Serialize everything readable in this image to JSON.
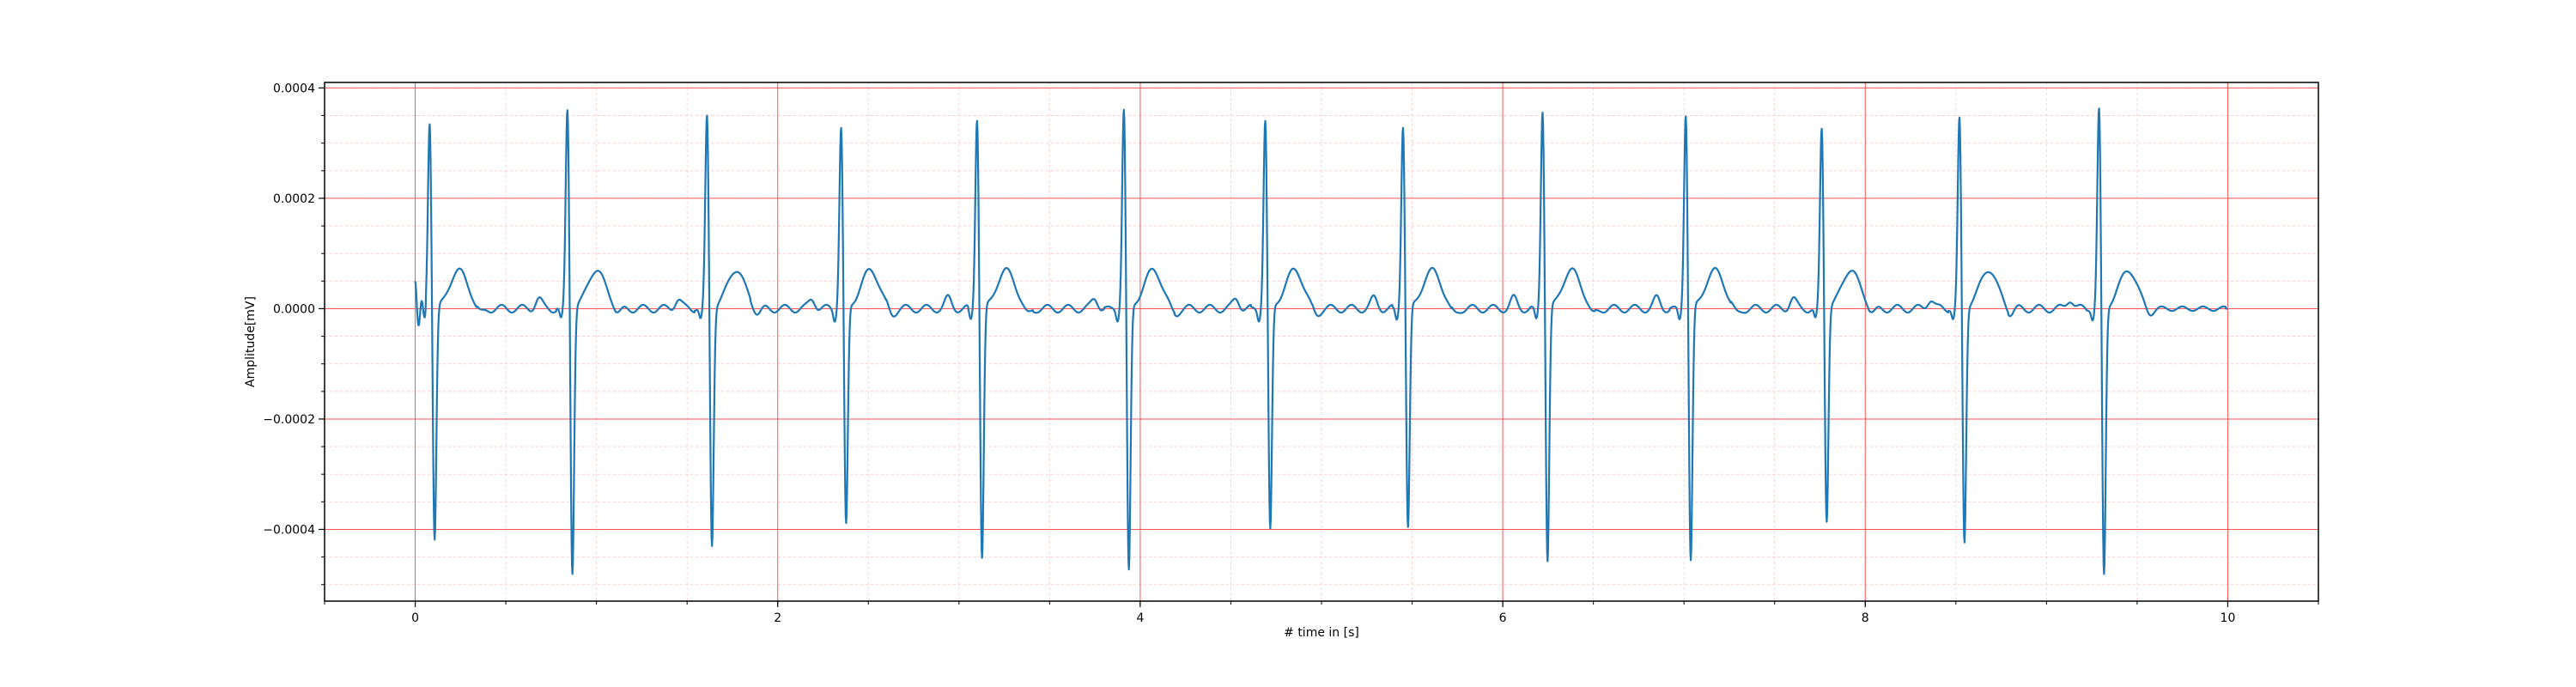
{
  "chart_data": {
    "type": "line",
    "title": "",
    "xlabel": "# time in [s]",
    "ylabel": "Amplitude[mV]",
    "xlim": [
      -0.5,
      10.5
    ],
    "ylim": [
      -0.00053,
      0.00041
    ],
    "xticks": [
      0,
      2,
      4,
      6,
      8,
      10
    ],
    "xtick_labels": [
      "0",
      "2",
      "4",
      "6",
      "8",
      "10"
    ],
    "yticks": [
      0.0004,
      0.0002,
      0.0,
      -0.0002,
      -0.0004
    ],
    "ytick_labels": [
      "0.0004",
      "0.0002",
      "0.0000",
      "−0.0002",
      "−0.0004"
    ],
    "x_minor_step": 0.5,
    "y_minor_step": 5e-05,
    "grid": true,
    "grid_major_color": "#ff5555",
    "grid_minor_color": "#ffc8c8",
    "line_color": "#1f77b4",
    "legend": null,
    "series": [
      {
        "name": "",
        "beat_times": [
          0.08,
          0.84,
          1.61,
          2.35,
          3.1,
          3.91,
          4.69,
          5.45,
          6.22,
          7.01,
          7.76,
          8.52,
          9.29
        ],
        "r_peaks": [
          0.000345,
          0.000368,
          0.000355,
          0.000333,
          0.000352,
          0.000368,
          0.000347,
          0.000338,
          0.000367,
          0.00036,
          0.000333,
          0.00035,
          0.000367
        ],
        "s_troughs": [
          -0.000425,
          -0.000485,
          -0.000435,
          -0.0004,
          -0.00046,
          -0.000485,
          -0.00041,
          -0.000405,
          -0.000465,
          -0.000465,
          -0.00039,
          -0.00043,
          -0.00049
        ],
        "t_wave_peak": 7e-05,
        "baseline": 0.0,
        "x_range": [
          0,
          10
        ]
      }
    ]
  }
}
